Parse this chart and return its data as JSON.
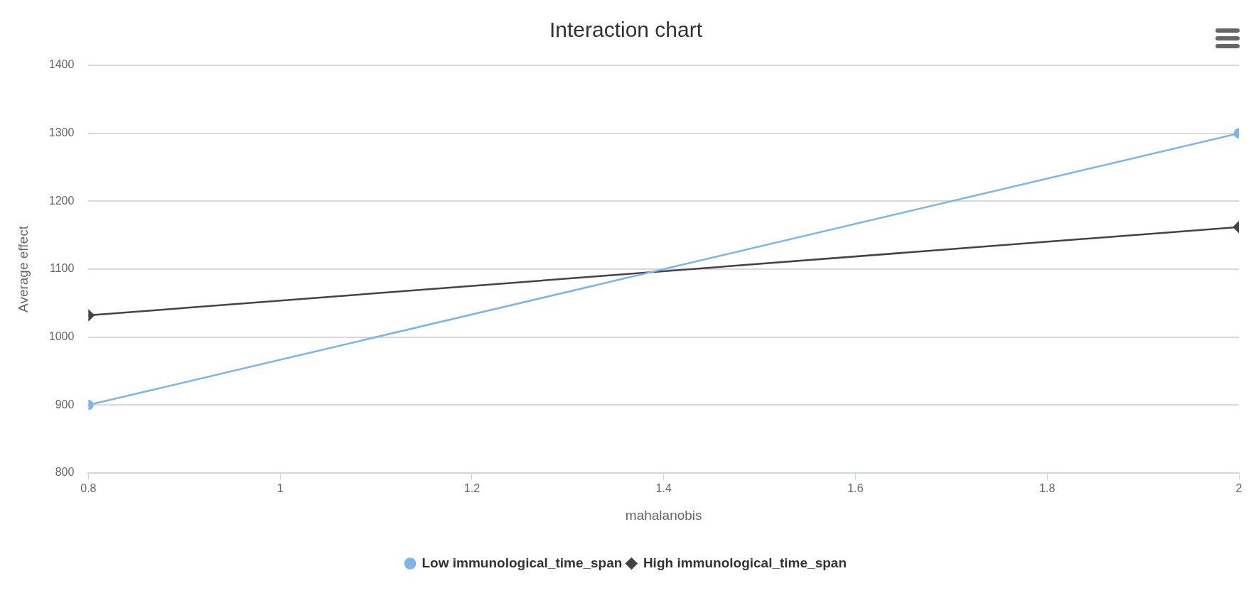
{
  "chart_data": {
    "type": "line",
    "title": "Interaction chart",
    "xlabel": "mahalanobis",
    "ylabel": "Average effect",
    "x": [
      0.8,
      2
    ],
    "series": [
      {
        "name": "Low immunological_time_span",
        "color": "#7cb5ec",
        "values": [
          900,
          1300
        ],
        "marker": "circle"
      },
      {
        "name": "High immunological_time_span",
        "color": "#434348",
        "values": [
          1032,
          1162
        ],
        "marker": "diamond"
      }
    ],
    "xlim": [
      0.8,
      2
    ],
    "xticks": [
      0.8,
      1,
      1.2,
      1.4,
      1.6,
      1.8,
      2
    ],
    "ylim": [
      800,
      1400
    ],
    "yticks": [
      800,
      900,
      1000,
      1100,
      1200,
      1300,
      1400
    ],
    "grid": "y",
    "legend": "bottom",
    "line_style": "solid"
  }
}
